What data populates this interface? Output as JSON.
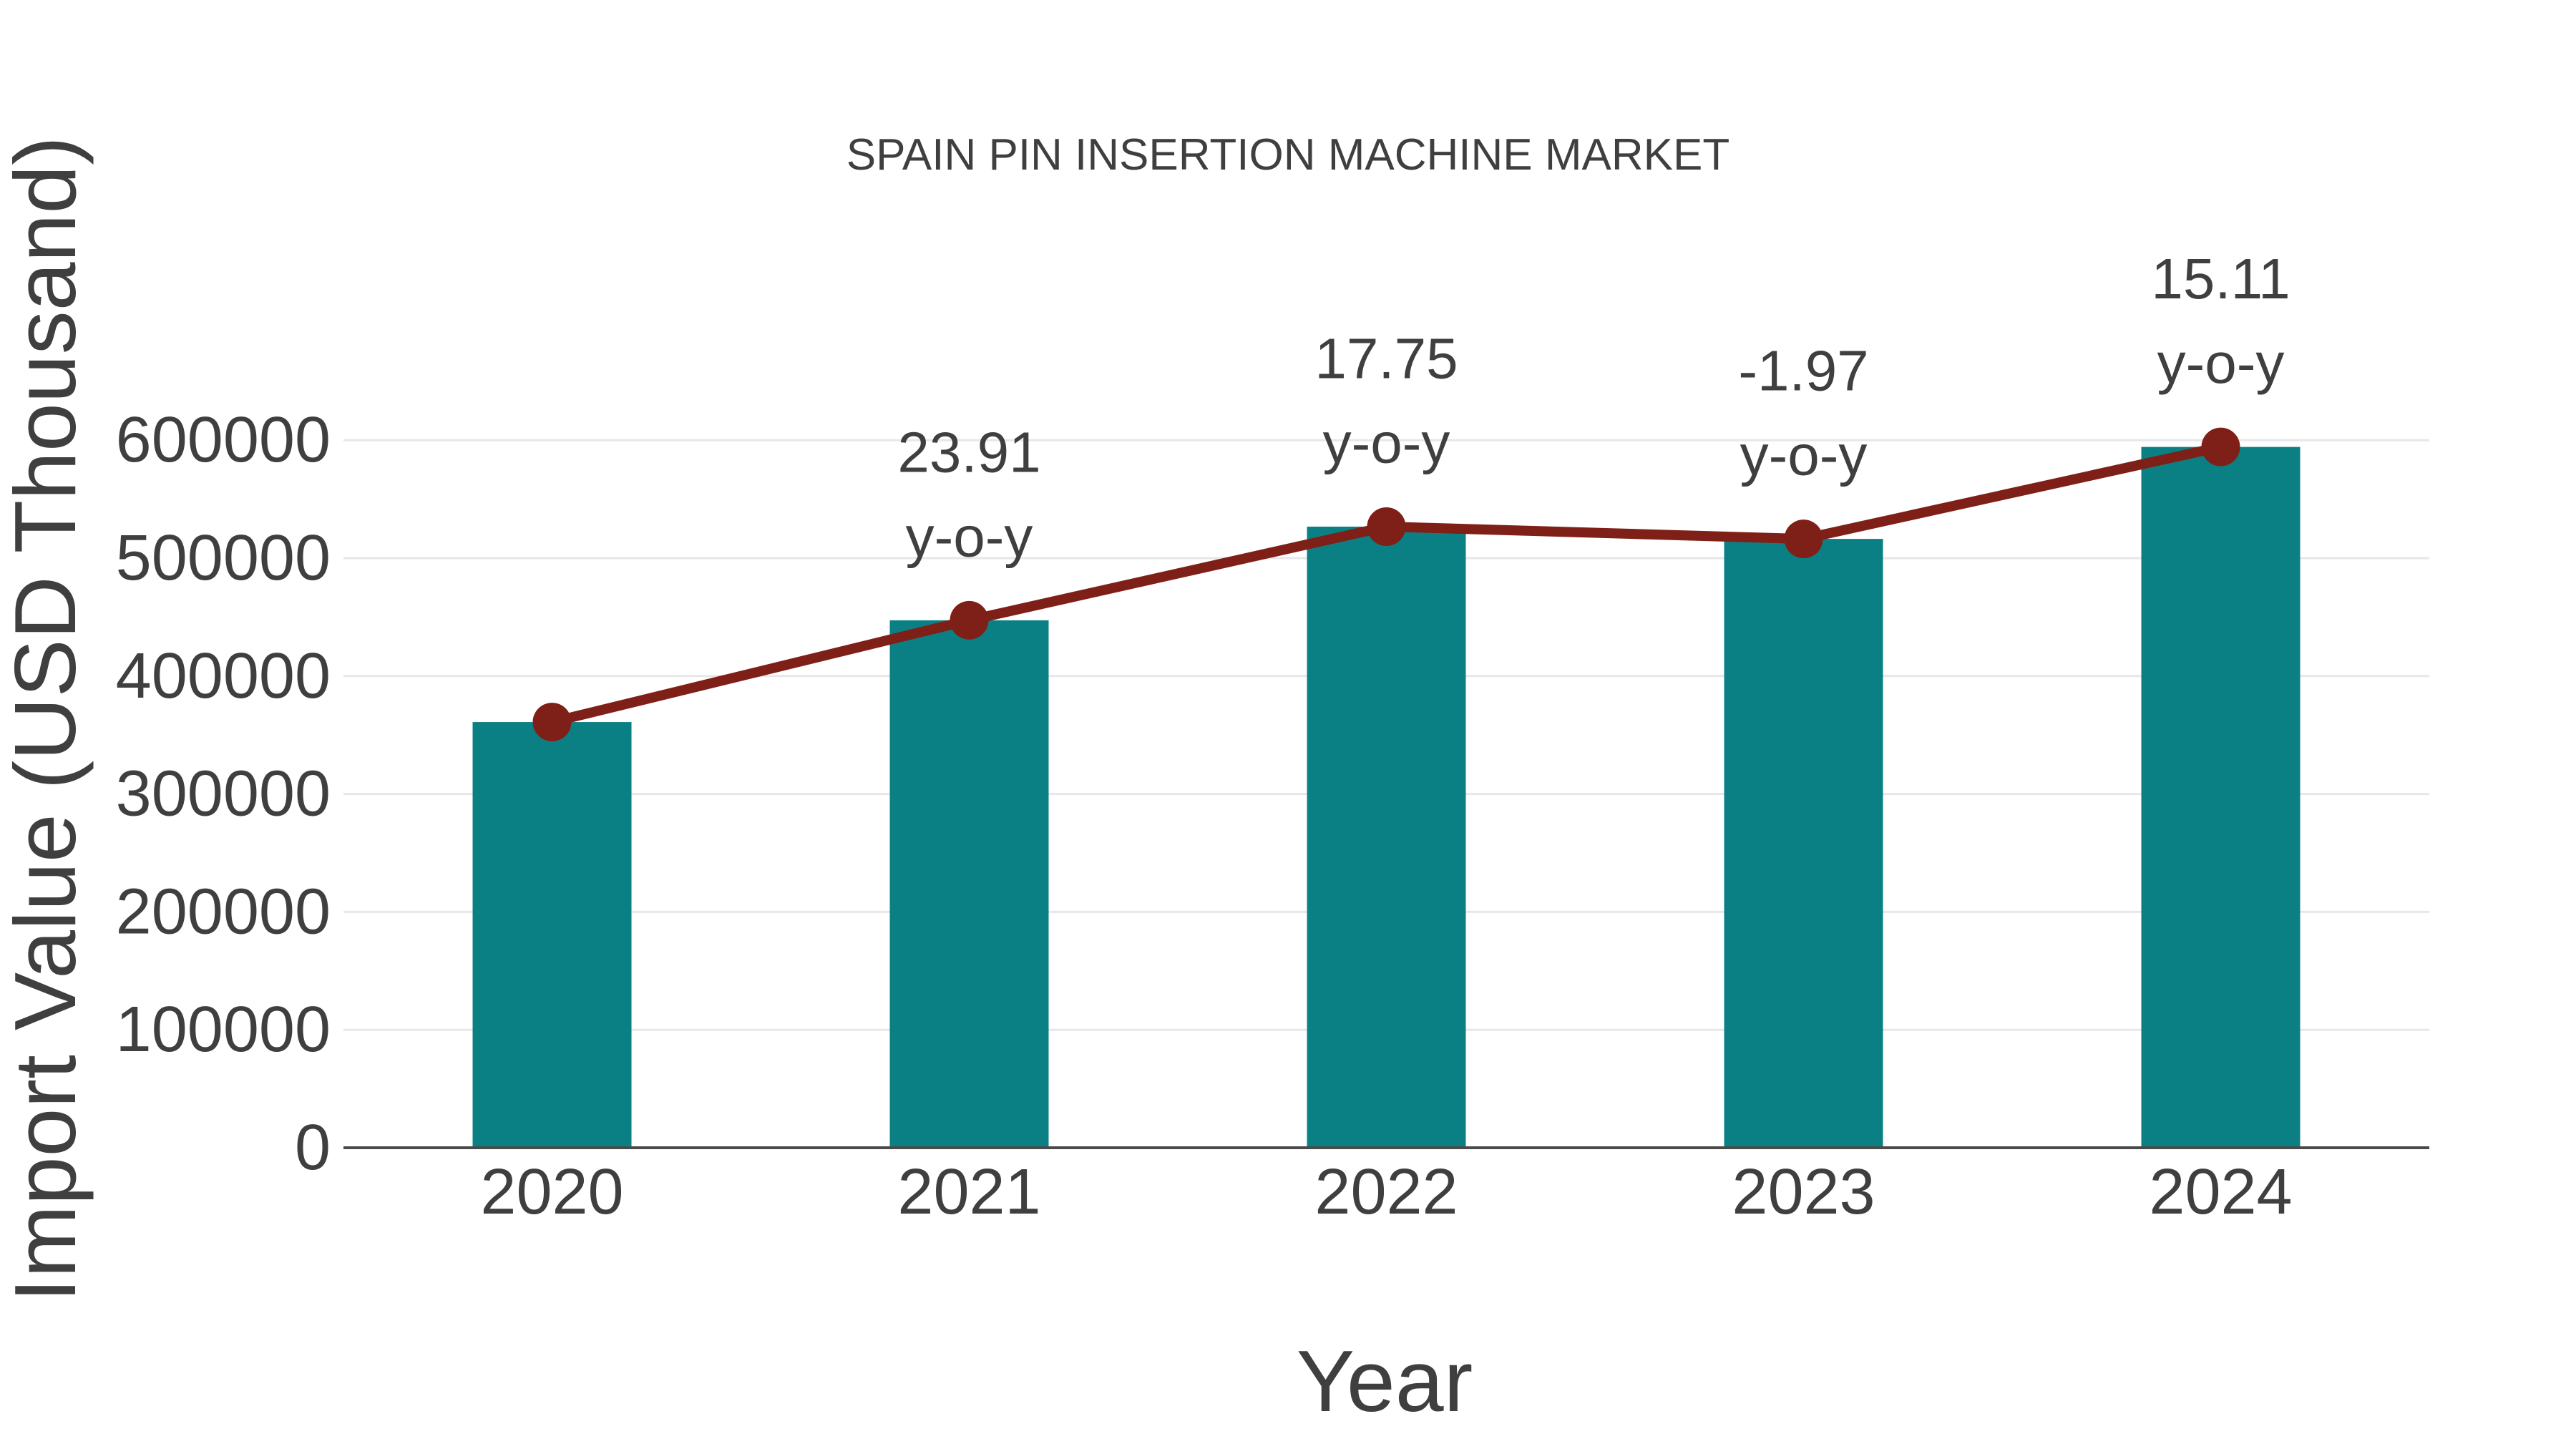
{
  "title": "SPAIN PIN INSERTION MACHINE MARKET",
  "chart_data": {
    "type": "bar",
    "subtype": "bar-with-line-overlay",
    "title": "SPAIN PIN INSERTION MACHINE MARKET",
    "xlabel": "Year",
    "ylabel": "Import Value (USD Thousand)",
    "categories": [
      "2020",
      "2021",
      "2022",
      "2023",
      "2024"
    ],
    "series": [
      {
        "name": "Import Value (USD Thousand) - bars",
        "type": "bar",
        "values": [
          361000,
          447300,
          526700,
          516300,
          594300
        ]
      },
      {
        "name": "Import Value trend - line with markers",
        "type": "line",
        "values": [
          361000,
          447300,
          526700,
          516300,
          594300
        ]
      }
    ],
    "yoy_growth_percent": [
      null,
      23.91,
      17.75,
      -1.97,
      15.11
    ],
    "annotations": [
      {
        "category": "2021",
        "line1": "23.91",
        "line2": "y-o-y"
      },
      {
        "category": "2022",
        "line1": "17.75",
        "line2": "y-o-y"
      },
      {
        "category": "2023",
        "line1": "-1.97",
        "line2": "y-o-y"
      },
      {
        "category": "2024",
        "line1": "15.11",
        "line2": "y-o-y"
      }
    ],
    "ylim": [
      0,
      650000
    ],
    "yticks": [
      0,
      100000,
      200000,
      300000,
      400000,
      500000,
      600000
    ],
    "grid": true,
    "legend_position": "none",
    "colors": {
      "bar": "#0B8084",
      "line": "#7E2018",
      "marker": "#7E2018",
      "gridline": "#E7E7E7",
      "axis_line": "#4A4A4A",
      "text": "#3F3F3F"
    }
  }
}
